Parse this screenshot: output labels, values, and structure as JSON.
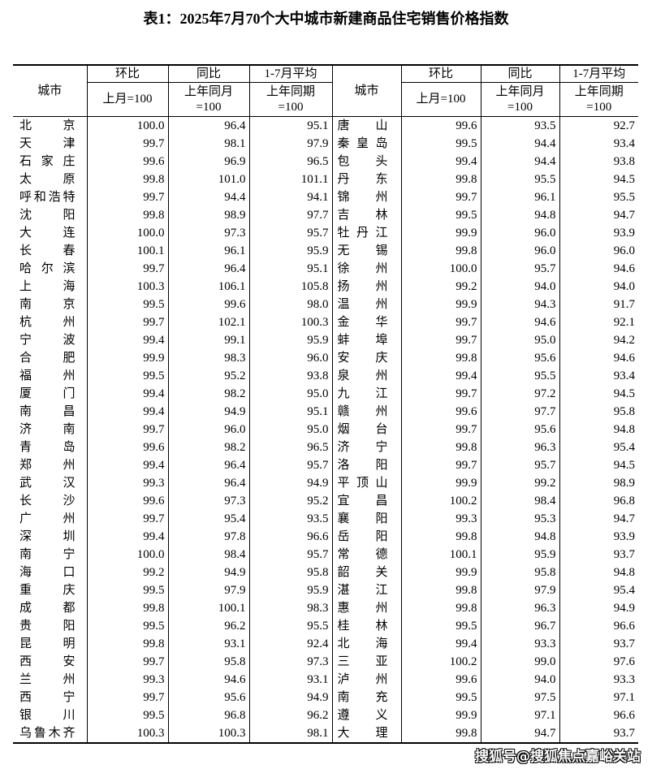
{
  "title": "表1：2025年7月70个大中城市新建商品住宅销售价格指数",
  "headers": {
    "city": "城市",
    "mom": "环比",
    "mom_base": "上月=100",
    "yoy": "同比",
    "yoy_base": "上年同月=100",
    "avg": "1-7月平均",
    "avg_base": "上年同期=100"
  },
  "rows": [
    [
      [
        "北京",
        "100.0",
        "96.4",
        "95.1"
      ],
      [
        "唐山",
        "99.6",
        "93.5",
        "92.7"
      ]
    ],
    [
      [
        "天津",
        "99.7",
        "98.1",
        "97.9"
      ],
      [
        "秦皇岛",
        "99.5",
        "94.4",
        "93.4"
      ]
    ],
    [
      [
        "石家庄",
        "99.6",
        "96.9",
        "96.5"
      ],
      [
        "包头",
        "99.4",
        "94.4",
        "93.8"
      ]
    ],
    [
      [
        "太原",
        "99.8",
        "101.0",
        "101.1"
      ],
      [
        "丹东",
        "99.8",
        "95.5",
        "94.5"
      ]
    ],
    [
      [
        "呼和浩特",
        "99.7",
        "94.4",
        "94.1"
      ],
      [
        "锦州",
        "99.7",
        "96.1",
        "95.5"
      ]
    ],
    [
      [
        "沈阳",
        "99.8",
        "98.9",
        "97.7"
      ],
      [
        "吉林",
        "99.5",
        "94.8",
        "94.7"
      ]
    ],
    [
      [
        "大连",
        "100.0",
        "97.3",
        "95.7"
      ],
      [
        "牡丹江",
        "99.9",
        "96.0",
        "93.9"
      ]
    ],
    [
      [
        "长春",
        "100.1",
        "96.1",
        "95.9"
      ],
      [
        "无锡",
        "99.8",
        "96.0",
        "96.0"
      ]
    ],
    [
      [
        "哈尔滨",
        "99.7",
        "96.4",
        "95.1"
      ],
      [
        "徐州",
        "100.0",
        "95.7",
        "94.6"
      ]
    ],
    [
      [
        "上海",
        "100.3",
        "106.1",
        "105.8"
      ],
      [
        "扬州",
        "99.2",
        "94.0",
        "94.0"
      ]
    ],
    [
      [
        "南京",
        "99.5",
        "99.6",
        "98.0"
      ],
      [
        "温州",
        "99.9",
        "94.3",
        "91.7"
      ]
    ],
    [
      [
        "杭州",
        "99.7",
        "102.1",
        "100.3"
      ],
      [
        "金华",
        "99.7",
        "94.6",
        "92.1"
      ]
    ],
    [
      [
        "宁波",
        "99.4",
        "99.1",
        "95.9"
      ],
      [
        "蚌埠",
        "99.7",
        "95.0",
        "94.2"
      ]
    ],
    [
      [
        "合肥",
        "99.9",
        "98.3",
        "96.0"
      ],
      [
        "安庆",
        "99.8",
        "95.6",
        "94.6"
      ]
    ],
    [
      [
        "福州",
        "99.5",
        "95.2",
        "93.8"
      ],
      [
        "泉州",
        "99.4",
        "95.5",
        "93.4"
      ]
    ],
    [
      [
        "厦门",
        "99.4",
        "98.2",
        "95.0"
      ],
      [
        "九江",
        "99.7",
        "97.2",
        "94.5"
      ]
    ],
    [
      [
        "南昌",
        "99.4",
        "94.9",
        "95.1"
      ],
      [
        "赣州",
        "99.6",
        "97.7",
        "95.8"
      ]
    ],
    [
      [
        "济南",
        "99.7",
        "96.0",
        "95.0"
      ],
      [
        "烟台",
        "99.7",
        "95.6",
        "94.8"
      ]
    ],
    [
      [
        "青岛",
        "99.6",
        "98.2",
        "96.5"
      ],
      [
        "济宁",
        "99.8",
        "96.3",
        "95.4"
      ]
    ],
    [
      [
        "郑州",
        "99.4",
        "96.4",
        "95.7"
      ],
      [
        "洛阳",
        "99.7",
        "95.7",
        "94.5"
      ]
    ],
    [
      [
        "武汉",
        "99.3",
        "96.4",
        "94.9"
      ],
      [
        "平顶山",
        "99.9",
        "99.2",
        "98.9"
      ]
    ],
    [
      [
        "长沙",
        "99.6",
        "97.3",
        "95.2"
      ],
      [
        "宜昌",
        "100.2",
        "98.4",
        "96.8"
      ]
    ],
    [
      [
        "广州",
        "99.7",
        "95.4",
        "93.5"
      ],
      [
        "襄阳",
        "99.3",
        "95.3",
        "94.7"
      ]
    ],
    [
      [
        "深圳",
        "99.4",
        "97.8",
        "96.6"
      ],
      [
        "岳阳",
        "99.8",
        "94.8",
        "93.9"
      ]
    ],
    [
      [
        "南宁",
        "100.0",
        "98.4",
        "95.7"
      ],
      [
        "常德",
        "100.1",
        "95.9",
        "93.7"
      ]
    ],
    [
      [
        "海口",
        "99.2",
        "94.9",
        "95.8"
      ],
      [
        "韶关",
        "99.9",
        "95.8",
        "94.8"
      ]
    ],
    [
      [
        "重庆",
        "99.5",
        "97.9",
        "95.9"
      ],
      [
        "湛江",
        "99.8",
        "97.9",
        "95.4"
      ]
    ],
    [
      [
        "成都",
        "99.8",
        "100.1",
        "98.3"
      ],
      [
        "惠州",
        "99.8",
        "96.3",
        "94.9"
      ]
    ],
    [
      [
        "贵阳",
        "99.5",
        "96.2",
        "95.5"
      ],
      [
        "桂林",
        "99.5",
        "96.7",
        "96.6"
      ]
    ],
    [
      [
        "昆明",
        "99.8",
        "93.1",
        "92.4"
      ],
      [
        "北海",
        "99.4",
        "93.3",
        "93.7"
      ]
    ],
    [
      [
        "西安",
        "99.7",
        "95.8",
        "97.3"
      ],
      [
        "三亚",
        "100.2",
        "99.0",
        "97.6"
      ]
    ],
    [
      [
        "兰州",
        "99.3",
        "94.6",
        "93.1"
      ],
      [
        "泸州",
        "99.6",
        "94.0",
        "93.3"
      ]
    ],
    [
      [
        "西宁",
        "99.7",
        "95.6",
        "94.9"
      ],
      [
        "南充",
        "99.5",
        "97.5",
        "97.1"
      ]
    ],
    [
      [
        "银川",
        "99.5",
        "96.8",
        "96.2"
      ],
      [
        "遵义",
        "99.9",
        "97.1",
        "96.6"
      ]
    ],
    [
      [
        "乌鲁木齐",
        "100.3",
        "100.3",
        "98.1"
      ],
      [
        "大理",
        "99.8",
        "94.7",
        "93.7"
      ]
    ]
  ],
  "watermark": "搜狐号@搜狐焦点嘉峪关站"
}
